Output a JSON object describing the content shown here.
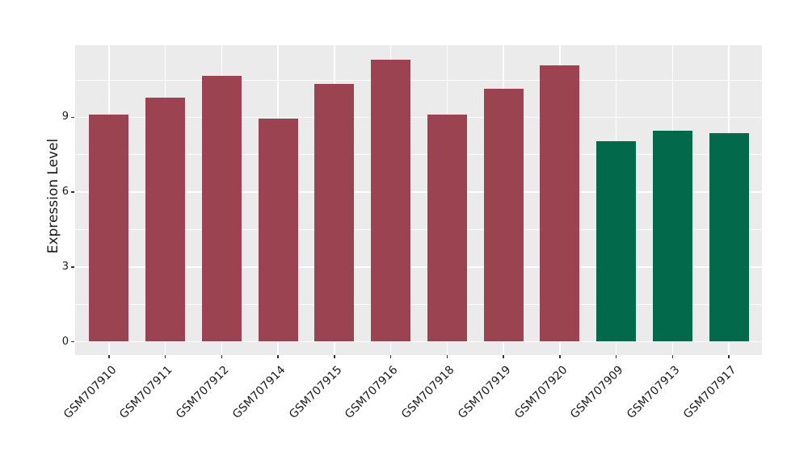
{
  "figure": {
    "background": "#FFFFFF"
  },
  "chart_data": {
    "type": "bar",
    "title": "",
    "xlabel": "",
    "ylabel": "Expression Level",
    "categories": [
      "GSM707910",
      "GSM707911",
      "GSM707912",
      "GSM707914",
      "GSM707915",
      "GSM707916",
      "GSM707918",
      "GSM707919",
      "GSM707920",
      "GSM707909",
      "GSM707913",
      "GSM707917"
    ],
    "values": [
      9.1,
      9.8,
      10.65,
      8.95,
      10.35,
      11.3,
      9.1,
      10.15,
      11.1,
      8.05,
      8.45,
      8.35
    ],
    "bar_colors": [
      "#9B4351",
      "#9B4351",
      "#9B4351",
      "#9B4351",
      "#9B4351",
      "#9B4351",
      "#9B4351",
      "#9B4351",
      "#9B4351",
      "#026A4B",
      "#026A4B",
      "#026A4B"
    ],
    "group_colors": {
      "red": "#9B4351",
      "green": "#026A4B"
    },
    "yticks": [
      0,
      3,
      6,
      9
    ],
    "yticks_minor": [
      1.5,
      4.5,
      7.5,
      10.5
    ],
    "ylim": [
      0,
      11.9
    ],
    "grid": "on",
    "legend": "none",
    "panel_bg": "#EBEBEB",
    "grid_color": "#FFFFFF",
    "tick_color": "#333333",
    "text_color": "#1A1A1A"
  }
}
